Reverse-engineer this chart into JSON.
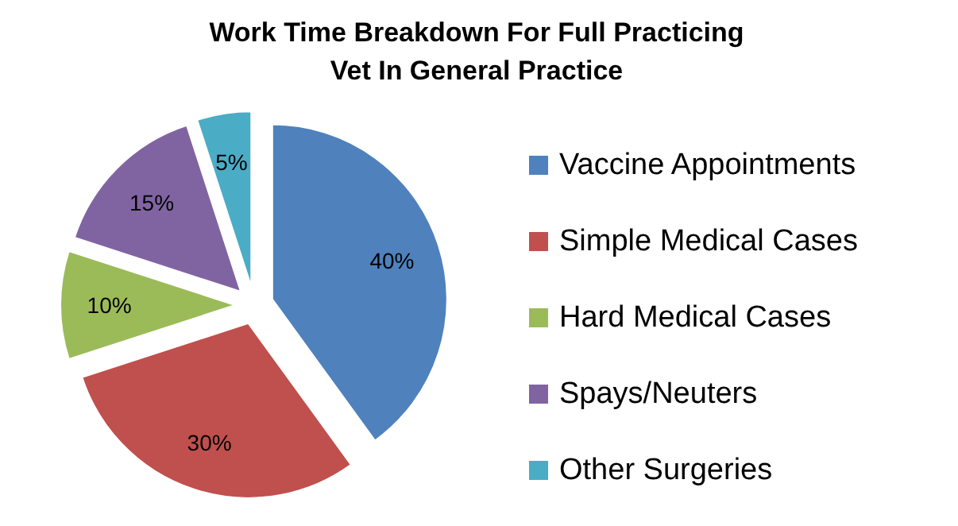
{
  "chart_data": {
    "type": "pie",
    "title": "Work Time Breakdown For Full Practicing Vet In General Practice",
    "categories": [
      "Vaccine Appointments",
      "Simple Medical Cases",
      "Hard Medical Cases",
      "Spays/Neuters",
      "Other Surgeries"
    ],
    "values": [
      40,
      30,
      10,
      15,
      5
    ],
    "value_labels": [
      "40%",
      "30%",
      "10%",
      "15%",
      "5%"
    ],
    "colors": [
      "#4f81bd",
      "#c0504d",
      "#9bbb59",
      "#8064a2",
      "#4bacc6"
    ],
    "legend": "right"
  }
}
